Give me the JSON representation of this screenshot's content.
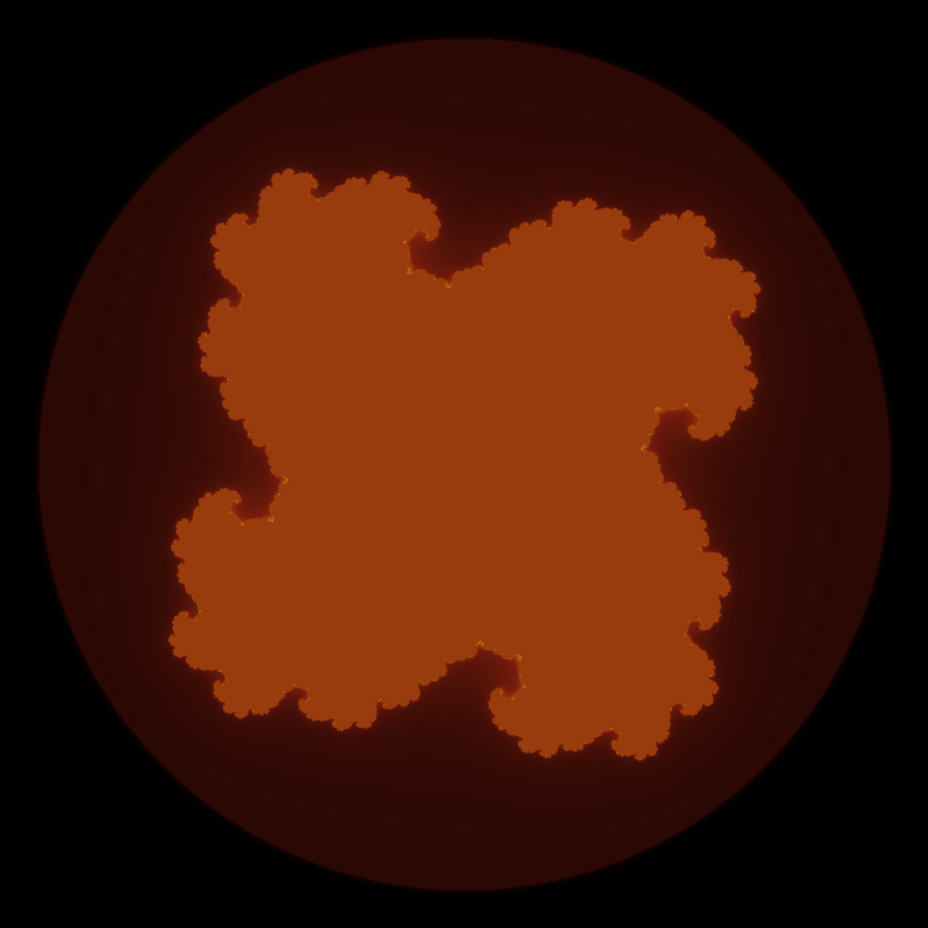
{
  "fractal": {
    "kind": "julia-set",
    "power": 4,
    "escape_radius": 1.5,
    "max_iterations": 80,
    "palette": {
      "background": "#000000",
      "deep": "#140202",
      "mid": "#3a0c06",
      "body": "#7a1e0c",
      "edge": "#c8680e",
      "glow": "#e8c010",
      "core": "#9ee23a"
    }
  }
}
